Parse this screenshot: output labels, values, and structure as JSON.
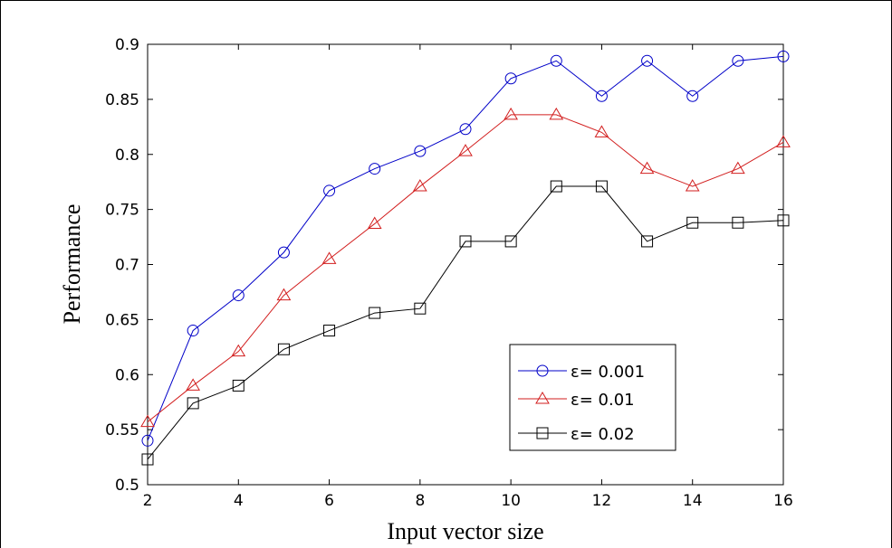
{
  "chart_data": {
    "type": "line",
    "xlabel": "Input vector size",
    "ylabel": "Performance",
    "xlim": [
      2,
      16
    ],
    "ylim": [
      0.5,
      0.9
    ],
    "x_ticks": [
      "2",
      "4",
      "6",
      "8",
      "10",
      "12",
      "14",
      "16"
    ],
    "y_ticks": [
      "0.5",
      "0.55",
      "0.6",
      "0.65",
      "0.7",
      "0.75",
      "0.8",
      "0.85",
      "0.9"
    ],
    "grid": false,
    "legend_position": "lower-right",
    "x": [
      2,
      3,
      4,
      5,
      6,
      7,
      8,
      9,
      10,
      11,
      12,
      13,
      14,
      15,
      16
    ],
    "series": [
      {
        "name": "ε= 0.001",
        "color": "#0000c8",
        "marker": "circle",
        "values": [
          0.54,
          0.64,
          0.672,
          0.711,
          0.767,
          0.787,
          0.803,
          0.823,
          0.869,
          0.885,
          0.853,
          0.885,
          0.853,
          0.885,
          0.889
        ]
      },
      {
        "name": "ε= 0.01",
        "color": "#d21e1e",
        "marker": "triangle",
        "values": [
          0.557,
          0.59,
          0.621,
          0.672,
          0.705,
          0.737,
          0.771,
          0.803,
          0.836,
          0.836,
          0.82,
          0.787,
          0.771,
          0.787,
          0.811
        ]
      },
      {
        "name": "ε= 0.02",
        "color": "#000000",
        "marker": "square",
        "values": [
          0.523,
          0.574,
          0.59,
          0.623,
          0.64,
          0.656,
          0.66,
          0.721,
          0.721,
          0.771,
          0.771,
          0.721,
          0.738,
          0.738,
          0.74
        ]
      }
    ]
  }
}
